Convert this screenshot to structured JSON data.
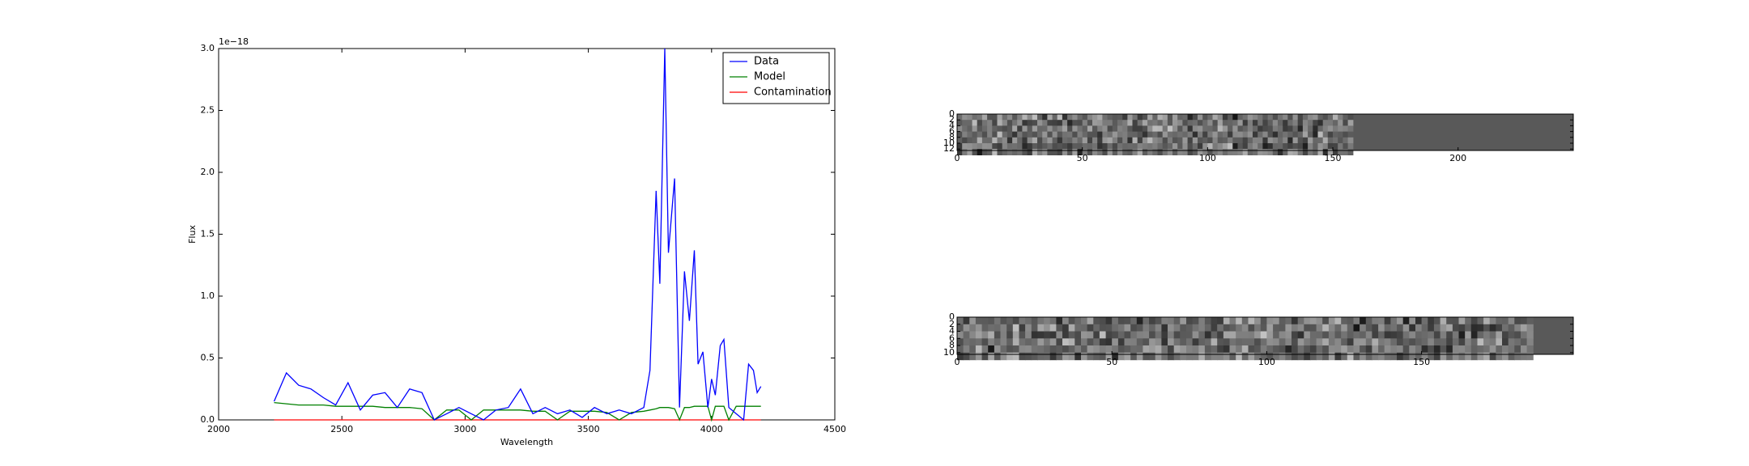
{
  "chart_data": [
    {
      "type": "line",
      "xlabel": "Wavelength",
      "ylabel": "Flux",
      "offset_text": "1e−18",
      "xlim": [
        2000,
        4500
      ],
      "xticks": [
        2000,
        2500,
        3000,
        3500,
        4000,
        4500
      ],
      "ylim": [
        0,
        3.0
      ],
      "yticks": [
        {
          "value": 0,
          "label": "0.0"
        },
        0.5,
        {
          "value": 1,
          "label": "1.0"
        },
        1.5,
        {
          "value": 2,
          "label": "2.0"
        },
        2.5,
        {
          "value": 3,
          "label": "3.0"
        }
      ],
      "legend": "upper right",
      "x": [
        2225,
        2275,
        2325,
        2375,
        2425,
        2475,
        2525,
        2575,
        2625,
        2675,
        2725,
        2775,
        2825,
        2875,
        2925,
        2975,
        3025,
        3075,
        3125,
        3175,
        3225,
        3275,
        3325,
        3375,
        3425,
        3475,
        3525,
        3575,
        3625,
        3675,
        3725,
        3750,
        3775,
        3790,
        3810,
        3825,
        3850,
        3870,
        3890,
        3910,
        3930,
        3945,
        3965,
        3985,
        4000,
        4015,
        4035,
        4050,
        4070,
        4100,
        4130,
        4150,
        4170,
        4185,
        4200
      ],
      "series": [
        {
          "name": "Data",
          "color": "#0000ff",
          "values": [
            0.15,
            0.38,
            0.28,
            0.25,
            0.18,
            0.12,
            0.3,
            0.08,
            0.2,
            0.22,
            0.1,
            0.25,
            0.22,
            0.0,
            0.05,
            0.1,
            0.05,
            0.0,
            0.08,
            0.1,
            0.25,
            0.05,
            0.1,
            0.05,
            0.08,
            0.02,
            0.1,
            0.05,
            0.08,
            0.05,
            0.1,
            0.4,
            1.85,
            1.1,
            3.0,
            1.35,
            1.95,
            0.1,
            1.2,
            0.8,
            1.37,
            0.45,
            0.55,
            0.1,
            0.33,
            0.2,
            0.6,
            0.65,
            0.1,
            0.05,
            0.0,
            0.45,
            0.4,
            0.22,
            0.27
          ]
        },
        {
          "name": "Model",
          "color": "#008000",
          "values": [
            0.14,
            0.13,
            0.12,
            0.12,
            0.12,
            0.11,
            0.11,
            0.11,
            0.11,
            0.1,
            0.1,
            0.1,
            0.09,
            0.0,
            0.08,
            0.08,
            0.0,
            0.08,
            0.08,
            0.08,
            0.08,
            0.07,
            0.07,
            0.0,
            0.07,
            0.07,
            0.07,
            0.06,
            0.0,
            0.06,
            0.07,
            0.08,
            0.09,
            0.1,
            0.1,
            0.1,
            0.09,
            0.0,
            0.1,
            0.1,
            0.11,
            0.11,
            0.11,
            0.11,
            0.0,
            0.11,
            0.11,
            0.11,
            0.0,
            0.11,
            0.11,
            0.11,
            0.11,
            0.11,
            0.11
          ]
        },
        {
          "name": "Contamination",
          "color": "#ff0000",
          "values": [
            0,
            0,
            0,
            0,
            0,
            0,
            0,
            0,
            0,
            0,
            0,
            0,
            0,
            0,
            0,
            0,
            0,
            0,
            0,
            0,
            0,
            0,
            0,
            0,
            0,
            0,
            0,
            0,
            0,
            0,
            0,
            0,
            0,
            0,
            0,
            0,
            0,
            0,
            0,
            0,
            0,
            0,
            0,
            0,
            0,
            0,
            0,
            0,
            0,
            0,
            0,
            0,
            0,
            0,
            0
          ]
        }
      ]
    },
    {
      "type": "image",
      "xlim": [
        0,
        246
      ],
      "xticks": [
        0,
        50,
        100,
        150,
        200
      ],
      "ylim": [
        0,
        12.5
      ],
      "yticks": [
        0,
        2,
        4,
        6,
        8,
        10,
        12
      ],
      "flat_from": 158
    },
    {
      "type": "image",
      "xlim": [
        0,
        199
      ],
      "xticks": [
        0,
        50,
        100,
        150
      ],
      "ylim": [
        0,
        10.5
      ],
      "yticks": [
        0,
        2,
        4,
        6,
        8,
        10
      ],
      "flat_from": 185
    }
  ]
}
